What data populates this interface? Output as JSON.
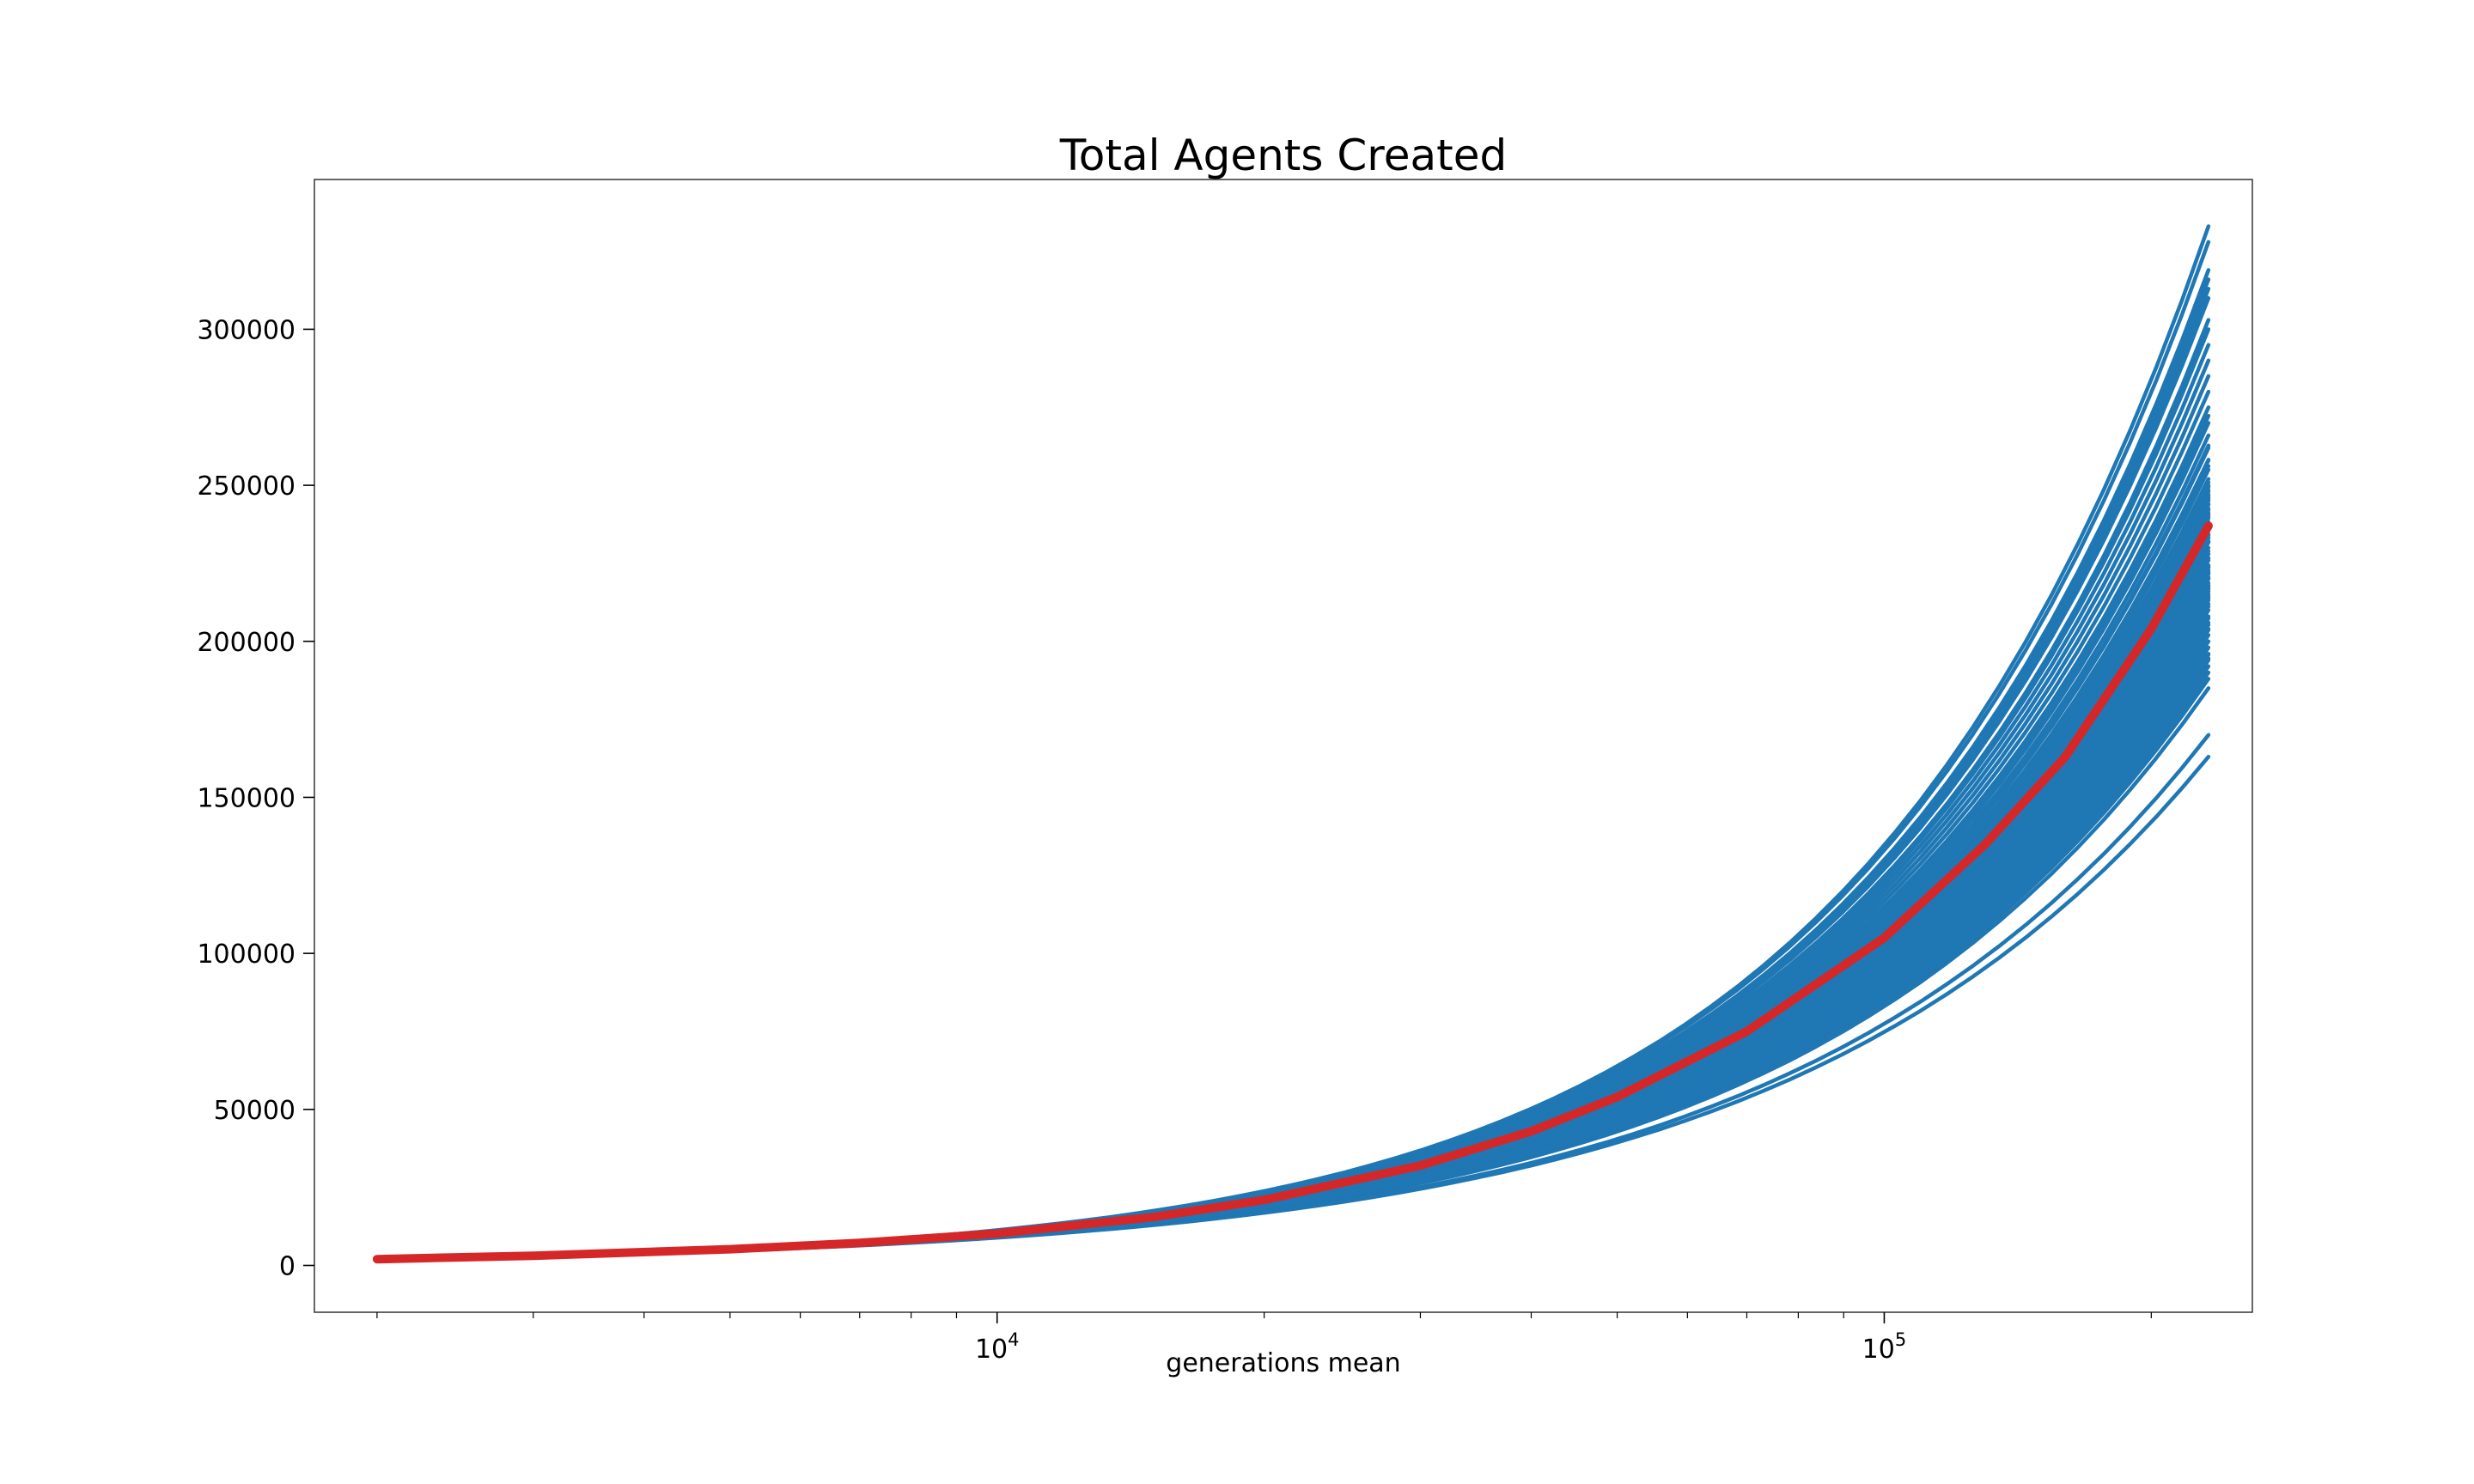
{
  "chart_data": {
    "type": "line",
    "title": "Total Agents Created",
    "xlabel": "generations mean",
    "ylabel": "",
    "xscale": "log",
    "xlim": [
      1700,
      260000
    ],
    "ylim": [
      -15000,
      348000
    ],
    "x_major_ticks": [
      {
        "value": 10000,
        "base": "10",
        "exp": "4"
      },
      {
        "value": 100000,
        "base": "10",
        "exp": "5"
      }
    ],
    "x_minor_ticks": [
      2000,
      3000,
      4000,
      5000,
      6000,
      7000,
      8000,
      9000,
      20000,
      30000,
      40000,
      50000,
      60000,
      70000,
      80000,
      90000,
      200000
    ],
    "y_ticks": [
      {
        "value": 0,
        "label": "0"
      },
      {
        "value": 50000,
        "label": "50000"
      },
      {
        "value": 100000,
        "label": "100000"
      },
      {
        "value": 150000,
        "label": "150000"
      },
      {
        "value": 200000,
        "label": "200000"
      },
      {
        "value": 250000,
        "label": "250000"
      },
      {
        "value": 300000,
        "label": "300000"
      }
    ],
    "grid": false,
    "legend": "none",
    "individual_runs": {
      "color": "#1f77b4",
      "count": 120,
      "x_start": 2000,
      "x_end": 232000,
      "y_start": 2000,
      "y_end_values": [
        163000,
        170000,
        185000,
        188000,
        190000,
        192000,
        194000,
        196000,
        198000,
        200000,
        202000,
        204000,
        206000,
        208000,
        210000,
        212000,
        214000,
        216000,
        218000,
        220000,
        222000,
        224000,
        226000,
        228000,
        230000,
        232000,
        234000,
        236000,
        238000,
        240000,
        242000,
        244000,
        246000,
        248000,
        250000,
        252000,
        255000,
        258000,
        262000,
        266000,
        270000,
        275000,
        280000,
        285000,
        290000,
        295000,
        300000,
        303000,
        310000,
        313000,
        316000,
        319000,
        328000,
        333000
      ]
    },
    "mean_line": {
      "color": "#d62728",
      "x": [
        2000,
        3000,
        5000,
        7000,
        10000,
        15000,
        20000,
        30000,
        40000,
        50000,
        70000,
        100000,
        130000,
        160000,
        200000,
        232000
      ],
      "y": [
        2000,
        3100,
        5200,
        7200,
        10200,
        15500,
        21000,
        32000,
        43000,
        54000,
        75000,
        105000,
        135000,
        163000,
        204000,
        237000
      ]
    }
  }
}
